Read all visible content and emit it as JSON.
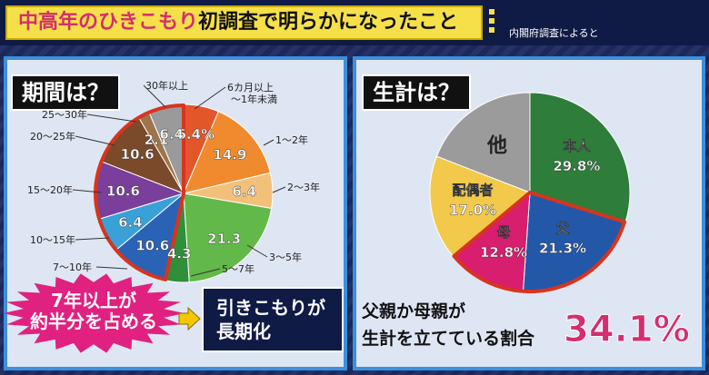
{
  "header": {
    "title_part1": "中高年のひきこもり",
    "title_part2": "初調査で明らかになったこと",
    "source": "内閣府調査によると"
  },
  "left_panel": {
    "title": "期間は？",
    "burst_line1": "7年以上が",
    "burst_line2": "約半分を占める",
    "conclusion_line1": "引きこもりが",
    "conclusion_line2": "長期化",
    "highlight_color": "#d8341e",
    "burst_color": "#e0217f"
  },
  "right_panel": {
    "title": "生計は？",
    "caption_line1": "父親か母親が",
    "caption_line2": "生計を立てている割合",
    "big_percent": "34.1%",
    "big_percent_color": "#d42e6e"
  },
  "chart_data": [
    {
      "type": "pie",
      "title": "期間は？",
      "slices": [
        {
          "label": "6カ月以上〜1年未満",
          "value": 6.4,
          "display": "6.4%",
          "color": "#e3562a",
          "highlight": false
        },
        {
          "label": "1〜2年",
          "value": 14.9,
          "display": "14.9",
          "color": "#ef8a2e",
          "highlight": false
        },
        {
          "label": "2〜3年",
          "value": 6.4,
          "display": "6.4",
          "color": "#f3c07a",
          "highlight": false
        },
        {
          "label": "3〜5年",
          "value": 21.3,
          "display": "21.3",
          "color": "#63b84a",
          "highlight": false
        },
        {
          "label": "5〜7年",
          "value": 4.3,
          "display": "4.3",
          "color": "#2f8f3a",
          "highlight": false
        },
        {
          "label": "7〜10年",
          "value": 10.6,
          "display": "10.6",
          "color": "#2a63b5",
          "highlight": true
        },
        {
          "label": "10〜15年",
          "value": 6.4,
          "display": "6.4",
          "color": "#3aa0d8",
          "highlight": true
        },
        {
          "label": "15〜20年",
          "value": 10.6,
          "display": "10.6",
          "color": "#7a3f9a",
          "highlight": true
        },
        {
          "label": "20〜25年",
          "value": 10.6,
          "display": "10.6",
          "color": "#7a4a2a",
          "highlight": true
        },
        {
          "label": "25〜30年",
          "value": 2.1,
          "display": "2.1",
          "color": "#a0744a",
          "highlight": true
        },
        {
          "label": "30年以上",
          "value": 6.4,
          "display": "6.4",
          "color": "#9a9a9a",
          "highlight": true
        }
      ]
    },
    {
      "type": "pie",
      "title": "生計は？",
      "slices": [
        {
          "label": "本人",
          "value": 29.8,
          "display": "29.8%",
          "color": "#2e7d3a",
          "highlight": false
        },
        {
          "label": "父",
          "value": 21.3,
          "display": "21.3%",
          "color": "#2358a8",
          "highlight": true
        },
        {
          "label": "母",
          "value": 12.8,
          "display": "12.8%",
          "color": "#d81e6e",
          "highlight": true
        },
        {
          "label": "配偶者",
          "value": 17.0,
          "display": "17.0%",
          "color": "#f2c94a",
          "highlight": false
        },
        {
          "label": "他",
          "value": 19.1,
          "display": "",
          "color": "#9b9b9b",
          "highlight": false
        }
      ]
    }
  ]
}
